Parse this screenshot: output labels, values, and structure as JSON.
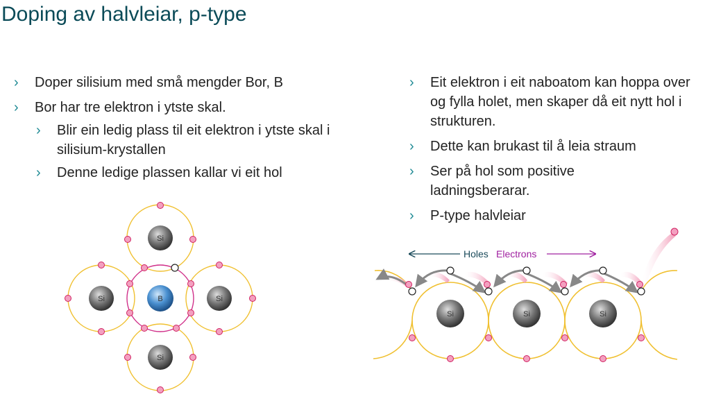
{
  "slide": {
    "title": "Doping av halvleiar, p-type",
    "left_bullets": [
      {
        "level": 1,
        "text": "Doper silisium med små mengder Bor, B"
      },
      {
        "level": 1,
        "text": "Bor har tre elektron i ytste skal."
      },
      {
        "level": 2,
        "text": "Blir ein ledig plass til eit elektron i ytste skal i silisium-krystallen"
      },
      {
        "level": 2,
        "text": "Denne ledige plassen kallar vi eit hol"
      }
    ],
    "right_bullets": [
      {
        "level": 1,
        "text": "Eit elektron i eit naboatom kan hoppa over og fylla holet, men skaper då eit nytt hol i strukturen."
      },
      {
        "level": 1,
        "text": "Dette kan brukast til å leia straum"
      },
      {
        "level": 1,
        "text": "Ser på hol som positive ladningsberarar."
      },
      {
        "level": 1,
        "text": "P-type halvleiar"
      }
    ],
    "bullet_glyph": "›"
  },
  "lattice_diagram": {
    "atoms": {
      "center": "B",
      "neighbors": [
        "Si",
        "Si",
        "Si",
        "Si"
      ]
    },
    "electron_symbol": "−",
    "colors": {
      "orbit": "#f0c030",
      "boron_orbit": "#d0308a",
      "electron": "#e0407a",
      "si": "#777777",
      "boron": "#4a90d0"
    }
  },
  "hole_diagram": {
    "legend": {
      "holes": "Holes",
      "electrons": "Electrons"
    },
    "atoms": [
      "Si",
      "Si",
      "Si"
    ],
    "colors": {
      "holes_arrow": "#1a4a5a",
      "electrons_arrow": "#a020a0",
      "orbit": "#f0c030",
      "electron": "#e0407a",
      "arrow": "#888888"
    }
  }
}
